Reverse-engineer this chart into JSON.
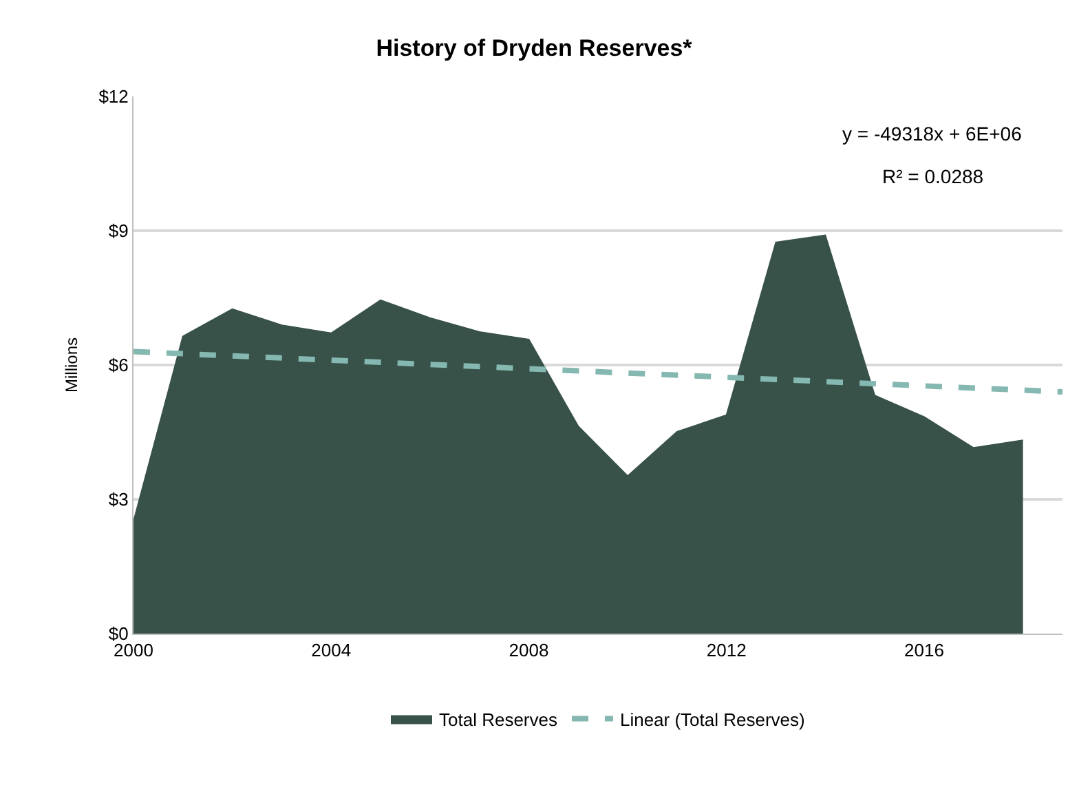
{
  "chart_data": {
    "type": "area",
    "title": "History of Dryden Reserves*",
    "ylabel": "Millions",
    "x": [
      2000,
      2001,
      2002,
      2003,
      2004,
      2005,
      2006,
      2007,
      2008,
      2009,
      2010,
      2011,
      2012,
      2013,
      2014,
      2015,
      2016,
      2017,
      2018
    ],
    "series": [
      {
        "name": "Total Reserves",
        "color": "#38524a",
        "values": [
          2.5,
          6.64,
          7.25,
          6.89,
          6.71,
          7.45,
          7.05,
          6.74,
          6.57,
          4.63,
          3.52,
          4.51,
          4.88,
          8.74,
          8.9,
          5.32,
          4.84,
          4.15,
          4.32
        ]
      },
      {
        "name": "Linear (Total Reserves)",
        "type": "line",
        "line_style": "dashed",
        "color": "#84b8b0",
        "x": [
          2000,
          2018.8
        ],
        "values": [
          6.3,
          5.4
        ]
      }
    ],
    "xlim": [
      2000,
      2018.8
    ],
    "xticks": [
      2000,
      2004,
      2008,
      2012,
      2016
    ],
    "ylim": [
      0,
      12
    ],
    "yticks": [
      {
        "value": 0,
        "label": "$0"
      },
      {
        "value": 3,
        "label": "$3"
      },
      {
        "value": 6,
        "label": "$6"
      },
      {
        "value": 9,
        "label": "$9"
      },
      {
        "value": 12,
        "label": "$12"
      }
    ],
    "annotations": [
      "y = -49318x + 6E+06",
      "R² = 0.0288"
    ],
    "grid": "y",
    "legend": "bottom"
  }
}
